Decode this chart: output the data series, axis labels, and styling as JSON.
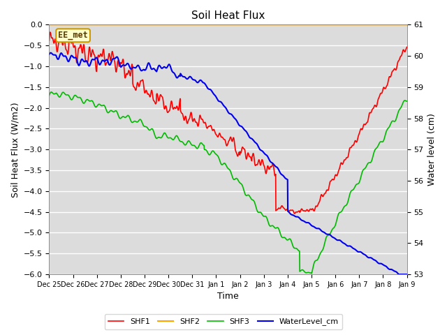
{
  "title": "Soil Heat Flux",
  "xlabel": "Time",
  "ylabel_left": "Soil Heat Flux (W/m2)",
  "ylabel_right": "Water level (cm)",
  "ylim_left": [
    -6.0,
    0.0
  ],
  "ylim_right": [
    53.0,
    61.0
  ],
  "yticks_left": [
    0.0,
    -0.5,
    -1.0,
    -1.5,
    -2.0,
    -2.5,
    -3.0,
    -3.5,
    -4.0,
    -4.5,
    -5.0,
    -5.5,
    -6.0
  ],
  "yticks_right": [
    53.0,
    54.0,
    55.0,
    56.0,
    57.0,
    58.0,
    59.0,
    60.0,
    61.0
  ],
  "xtick_labels": [
    "Dec 25",
    "Dec 26",
    "Dec 27",
    "Dec 28",
    "Dec 29",
    "Dec 30",
    "Dec 31",
    "Jan 1",
    "Jan 2",
    "Jan 3",
    "Jan 4",
    "Jan 5",
    "Jan 6",
    "Jan 7",
    "Jan 8",
    "Jan 9"
  ],
  "annotation_text": "EE_met",
  "annotation_box_color": "#FFFFCC",
  "annotation_box_edge_color": "#CC9900",
  "colors": {
    "SHF1": "#FF0000",
    "SHF2": "#FFA500",
    "SHF3": "#00BB00",
    "WaterLevel_cm": "#0000EE"
  },
  "legend_labels": [
    "SHF1",
    "SHF2",
    "SHF3",
    "WaterLevel_cm"
  ],
  "bg_color": "#DCDCDC",
  "grid_color": "#FFFFFF",
  "line_widths": {
    "SHF1": 1.2,
    "SHF2": 1.5,
    "SHF3": 1.2,
    "WaterLevel_cm": 1.5
  }
}
